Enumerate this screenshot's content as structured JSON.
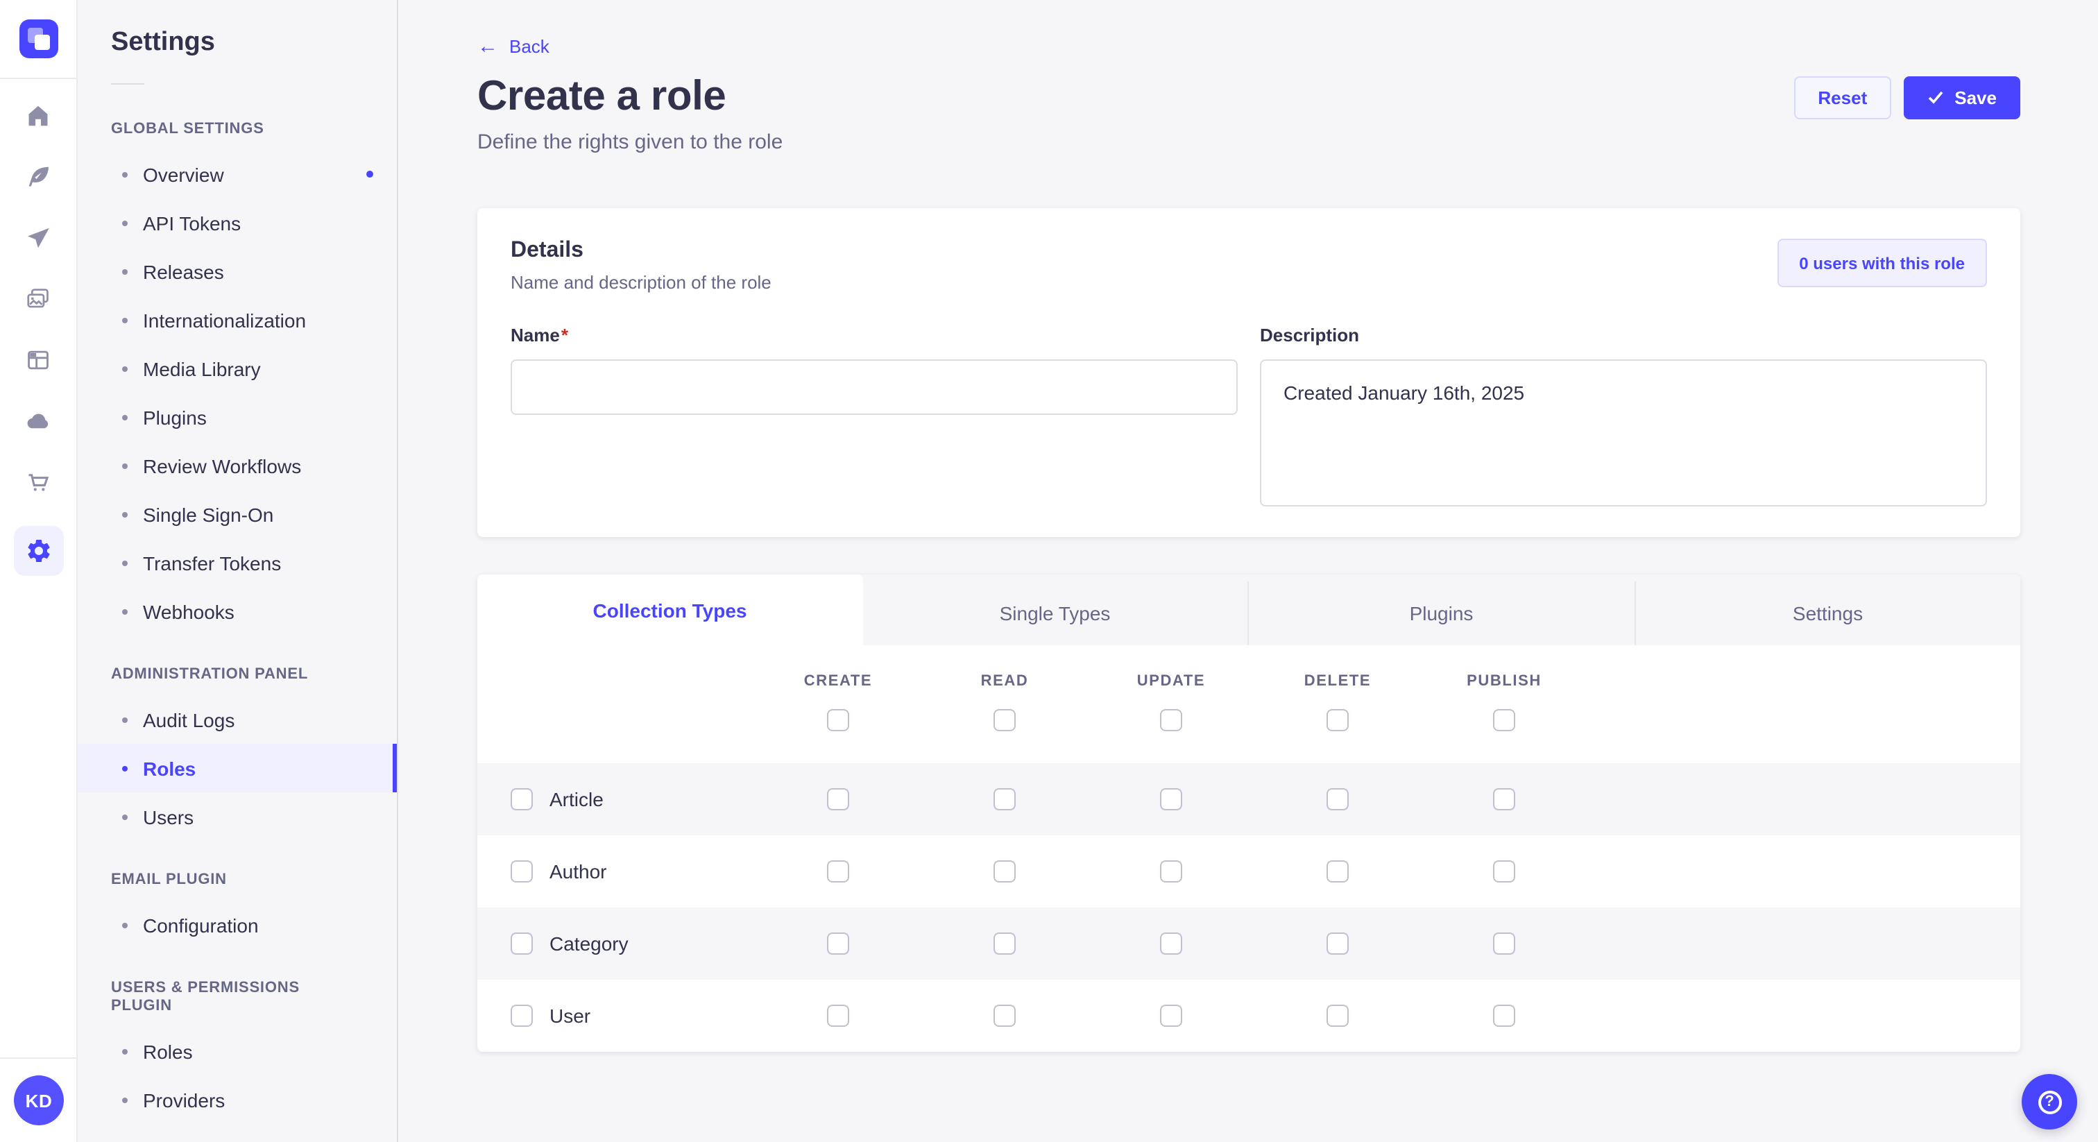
{
  "colors": {
    "primary": "#4945ff",
    "primary_light_bg": "#f0f0ff",
    "primary_border": "#d9d8ff",
    "page_background": "#f6f6f9",
    "card_background": "#ffffff",
    "text": "#32324d",
    "text_muted": "#666687",
    "required_mark": "#d02b20",
    "checkbox_border": "#c0c0cf"
  },
  "rail": {
    "logo": "strapi-logo",
    "nav_icons": [
      "home",
      "content-manager",
      "releases",
      "media-library",
      "content-type-builder",
      "deploy",
      "marketplace",
      "settings"
    ],
    "active_icon": "settings",
    "avatar_initials": "KD"
  },
  "subnav": {
    "title": "Settings",
    "sections": [
      {
        "label": "GLOBAL SETTINGS",
        "items": [
          {
            "label": "Overview",
            "notification": true
          },
          {
            "label": "API Tokens"
          },
          {
            "label": "Releases"
          },
          {
            "label": "Internationalization"
          },
          {
            "label": "Media Library"
          },
          {
            "label": "Plugins"
          },
          {
            "label": "Review Workflows"
          },
          {
            "label": "Single Sign-On"
          },
          {
            "label": "Transfer Tokens"
          },
          {
            "label": "Webhooks"
          }
        ]
      },
      {
        "label": "ADMINISTRATION PANEL",
        "items": [
          {
            "label": "Audit Logs"
          },
          {
            "label": "Roles",
            "active": true
          },
          {
            "label": "Users"
          }
        ]
      },
      {
        "label": "EMAIL PLUGIN",
        "items": [
          {
            "label": "Configuration"
          }
        ]
      },
      {
        "label": "USERS & PERMISSIONS PLUGIN",
        "items": [
          {
            "label": "Roles"
          },
          {
            "label": "Providers"
          }
        ]
      }
    ]
  },
  "header": {
    "back_label": "Back",
    "title": "Create a role",
    "subtitle": "Define the rights given to the role",
    "reset_label": "Reset",
    "save_label": "Save"
  },
  "details": {
    "title": "Details",
    "subtitle": "Name and description of the role",
    "users_badge": "0 users with this role",
    "name_label": "Name",
    "name_required_mark": "*",
    "name_value": "",
    "description_label": "Description",
    "description_value": "Created January 16th, 2025"
  },
  "permissions": {
    "tabs": [
      {
        "label": "Collection Types",
        "active": true
      },
      {
        "label": "Single Types"
      },
      {
        "label": "Plugins"
      },
      {
        "label": "Settings"
      }
    ],
    "columns": [
      "CREATE",
      "READ",
      "UPDATE",
      "DELETE",
      "PUBLISH"
    ],
    "rows": [
      {
        "label": "Article"
      },
      {
        "label": "Author"
      },
      {
        "label": "Category"
      },
      {
        "label": "User"
      }
    ],
    "all_checkboxes_checked": false
  },
  "help": {
    "label": "?"
  }
}
